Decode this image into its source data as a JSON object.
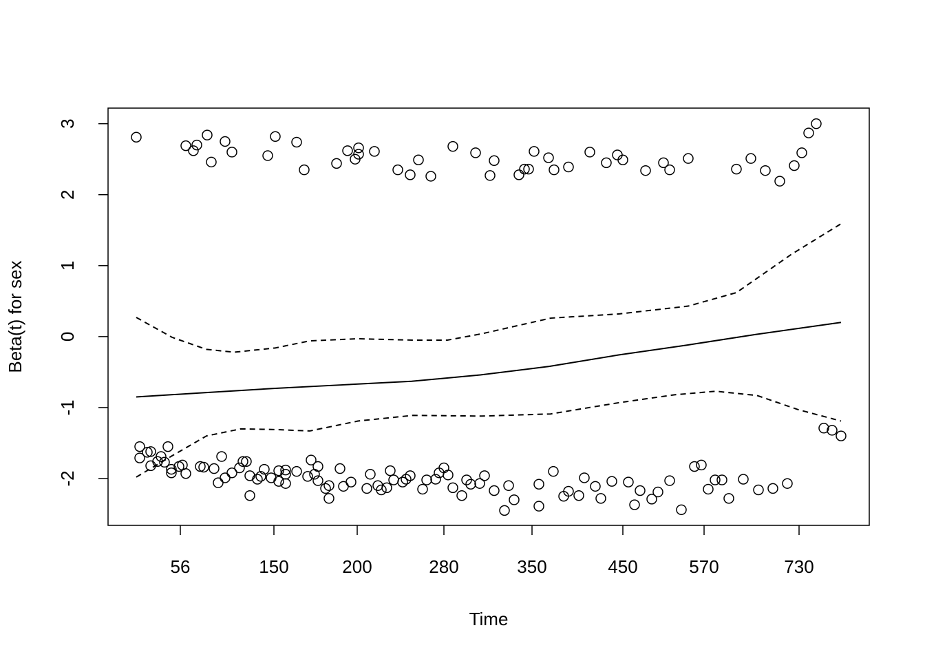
{
  "chart_data": {
    "type": "scatter",
    "x_label": "Time",
    "y_label": "Beta(t) for sex",
    "xlim": [
      -41,
      1065
    ],
    "ylim": [
      -2.66,
      3.22
    ],
    "xticks": [
      {
        "value": 64,
        "label": "56"
      },
      {
        "value": 200,
        "label": "150"
      },
      {
        "value": 321,
        "label": "200"
      },
      {
        "value": 447,
        "label": "280"
      },
      {
        "value": 575,
        "label": "350"
      },
      {
        "value": 707,
        "label": "450"
      },
      {
        "value": 825,
        "label": "570"
      },
      {
        "value": 963,
        "label": "730"
      }
    ],
    "yticks": [
      -2,
      -1,
      0,
      1,
      2,
      3
    ],
    "color": "#000000",
    "points": {
      "x": [
        0,
        72,
        83,
        88,
        103,
        109,
        129,
        139,
        191,
        202,
        233,
        244,
        291,
        307,
        318,
        323,
        323,
        346,
        380,
        398,
        410,
        428,
        460,
        493,
        514,
        520,
        556,
        564,
        570,
        578,
        599,
        607,
        628,
        659,
        683,
        699,
        707,
        740,
        766,
        775,
        802,
        872,
        893,
        914,
        935,
        956,
        967,
        977,
        988,
        5,
        5,
        16,
        21,
        21,
        31,
        36,
        41,
        46,
        51,
        51,
        62,
        67,
        72,
        93,
        98,
        113,
        119,
        124,
        129,
        139,
        150,
        155,
        160,
        165,
        165,
        176,
        181,
        186,
        196,
        207,
        207,
        217,
        217,
        217,
        233,
        249,
        254,
        259,
        264,
        264,
        275,
        280,
        280,
        296,
        301,
        312,
        335,
        340,
        351,
        356,
        364,
        369,
        374,
        387,
        392,
        398,
        416,
        422,
        435,
        440,
        447,
        453,
        460,
        473,
        480,
        486,
        499,
        506,
        520,
        535,
        541,
        549,
        585,
        585,
        606,
        621,
        628,
        643,
        651,
        667,
        675,
        691,
        715,
        724,
        732,
        749,
        758,
        775,
        792,
        811,
        821,
        831,
        841,
        851,
        861,
        882,
        904,
        925,
        946,
        999,
        1011,
        1024
      ],
      "y": [
        2.81,
        2.69,
        2.62,
        2.7,
        2.84,
        2.46,
        2.75,
        2.6,
        2.55,
        2.82,
        2.74,
        2.35,
        2.44,
        2.62,
        2.5,
        2.66,
        2.57,
        2.61,
        2.35,
        2.28,
        2.49,
        2.26,
        2.68,
        2.59,
        2.27,
        2.48,
        2.28,
        2.36,
        2.36,
        2.61,
        2.52,
        2.35,
        2.39,
        2.6,
        2.45,
        2.56,
        2.49,
        2.34,
        2.45,
        2.35,
        2.51,
        2.36,
        2.51,
        2.34,
        2.19,
        2.41,
        2.59,
        2.87,
        3.0,
        -1.55,
        -1.71,
        -1.63,
        -1.62,
        -1.82,
        -1.76,
        -1.69,
        -1.77,
        -1.55,
        -1.87,
        -1.92,
        -1.83,
        -1.81,
        -1.93,
        -1.83,
        -1.84,
        -1.86,
        -2.06,
        -1.69,
        -1.99,
        -1.92,
        -1.85,
        -1.76,
        -1.76,
        -1.96,
        -2.24,
        -2.01,
        -1.97,
        -1.87,
        -1.99,
        -1.89,
        -2.04,
        -1.88,
        -2.07,
        -1.94,
        -1.9,
        -1.97,
        -1.74,
        -1.94,
        -1.83,
        -2.03,
        -2.14,
        -2.1,
        -2.28,
        -1.86,
        -2.11,
        -2.05,
        -2.14,
        -1.94,
        -2.1,
        -2.16,
        -2.13,
        -1.89,
        -2.02,
        -2.05,
        -2.01,
        -1.96,
        -2.15,
        -2.02,
        -2.01,
        -1.92,
        -1.85,
        -1.95,
        -2.13,
        -2.24,
        -2.02,
        -2.08,
        -2.07,
        -1.96,
        -2.17,
        -2.45,
        -2.1,
        -2.3,
        -2.08,
        -2.39,
        -1.9,
        -2.25,
        -2.18,
        -2.24,
        -1.99,
        -2.11,
        -2.28,
        -2.04,
        -2.05,
        -2.37,
        -2.17,
        -2.29,
        -2.19,
        -2.03,
        -2.44,
        -1.83,
        -1.81,
        -2.15,
        -2.02,
        -2.02,
        -2.28,
        -2.01,
        -2.16,
        -2.14,
        -2.07,
        -1.29,
        -1.32,
        -1.4
      ]
    },
    "fit": {
      "x": [
        0,
        100,
        200,
        300,
        400,
        500,
        600,
        700,
        800,
        900,
        1024
      ],
      "y": [
        -0.85,
        -0.79,
        -0.73,
        -0.68,
        -0.63,
        -0.54,
        -0.42,
        -0.26,
        -0.12,
        0.03,
        0.2
      ]
    },
    "upper": {
      "x": [
        0,
        52,
        102,
        142,
        202,
        252,
        322,
        402,
        452,
        502,
        602,
        702,
        802,
        872,
        952,
        1024
      ],
      "y": [
        0.27,
        -0.01,
        -0.18,
        -0.22,
        -0.16,
        -0.06,
        -0.03,
        -0.05,
        -0.05,
        0.04,
        0.26,
        0.32,
        0.43,
        0.62,
        1.16,
        1.59
      ]
    },
    "lower": {
      "x": [
        0,
        52,
        102,
        152,
        202,
        252,
        322,
        402,
        502,
        602,
        702,
        782,
        842,
        902,
        962,
        1024
      ],
      "y": [
        -1.98,
        -1.68,
        -1.4,
        -1.3,
        -1.31,
        -1.33,
        -1.19,
        -1.11,
        -1.12,
        -1.09,
        -0.93,
        -0.82,
        -0.77,
        -0.83,
        -1.03,
        -1.19
      ]
    }
  }
}
